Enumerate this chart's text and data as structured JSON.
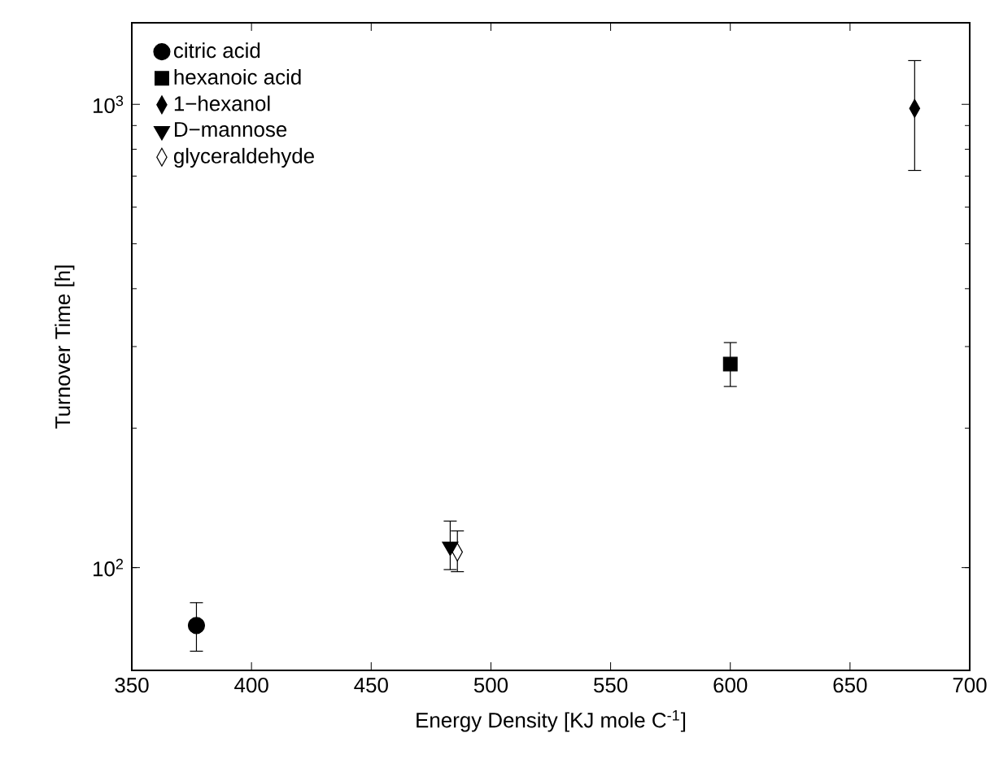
{
  "chart_data": {
    "type": "scatter",
    "xlabel": "Energy Density [KJ mole C$^{-1}$]",
    "ylabel": "Turnover Time [h]",
    "log": "y",
    "xlim": [
      350,
      700
    ],
    "xticks": [
      350,
      400,
      450,
      500,
      550,
      600,
      650,
      700
    ],
    "ylim": [
      60,
      1500
    ],
    "yticks": [
      {
        "value": 100,
        "label": "10$^{2}$"
      },
      {
        "value": 1000,
        "label": "10$^{3}$"
      }
    ],
    "legend": "top left",
    "series": [
      {
        "name": "citric acid",
        "color": "#000000",
        "marker": "circle",
        "x": [
          377
        ],
        "values": [
          75
        ],
        "errors": [
          [
            66,
            84
          ]
        ]
      },
      {
        "name": "hexanoic acid",
        "color": "#000000",
        "marker": "square",
        "x": [
          600
        ],
        "values": [
          275
        ],
        "errors": [
          [
            246,
            306
          ]
        ]
      },
      {
        "name": "1−hexanol",
        "color": "#000000",
        "marker": "diamond",
        "x": [
          677
        ],
        "values": [
          980
        ],
        "errors": [
          [
            720,
            1243
          ]
        ]
      },
      {
        "name": "D−mannose",
        "color": "#000000",
        "marker": "triangle",
        "x": [
          483
        ],
        "values": [
          111
        ],
        "errors": [
          [
            99,
            126
          ]
        ]
      },
      {
        "name": "glyceraldehyde",
        "color": "#ffffff",
        "marker": "diamond",
        "x": [
          486
        ],
        "values": [
          108
        ],
        "errors": [
          [
            98,
            120
          ]
        ]
      }
    ]
  }
}
